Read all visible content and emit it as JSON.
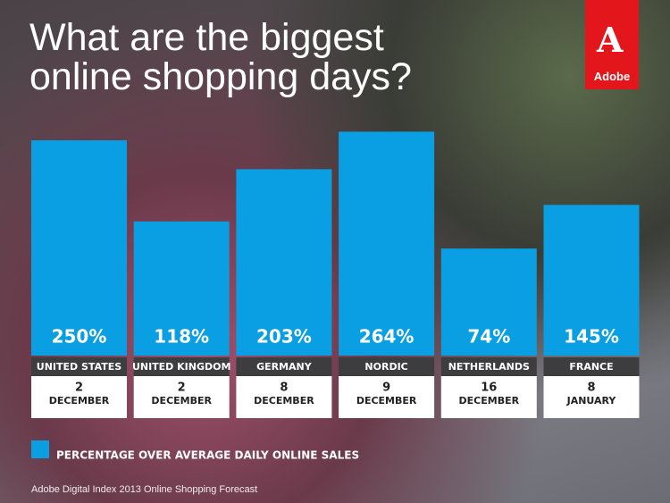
{
  "chart_data": {
    "type": "bar",
    "title": "What are the biggest online shopping days?",
    "categories": [
      "UNITED STATES",
      "UNITED KINGDOM",
      "GERMANY",
      "NORDIC",
      "NETHERLANDS",
      "FRANCE"
    ],
    "dates": [
      {
        "day": "2",
        "month": "DECEMBER"
      },
      {
        "day": "2",
        "month": "DECEMBER"
      },
      {
        "day": "8",
        "month": "DECEMBER"
      },
      {
        "day": "9",
        "month": "DECEMBER"
      },
      {
        "day": "16",
        "month": "DECEMBER"
      },
      {
        "day": "8",
        "month": "JANUARY"
      }
    ],
    "series": [
      {
        "name": "PERCENTAGE OVER AVERAGE DAILY ONLINE SALES",
        "color": "#0a9fe2",
        "values": [
          250,
          118,
          203,
          264,
          74,
          145
        ],
        "value_labels": [
          "250%",
          "118%",
          "203%",
          "264%",
          "74%",
          "145%"
        ]
      }
    ],
    "ylim": [
      -100,
      300
    ],
    "source": "Adobe Digital Index 2013 Online Shopping Forecast"
  },
  "logo": "Adobe"
}
